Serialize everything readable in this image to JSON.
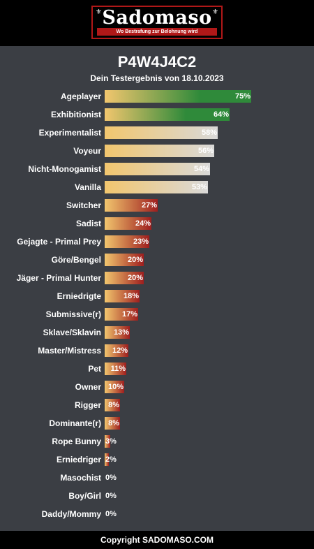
{
  "header": {
    "logo_text": "Sadomaso",
    "logo_tagline": "Wo Bestrafung zur Belohnung wird",
    "logo_corner_glyph": "⚜"
  },
  "colors": {
    "green": "#2f8a3a",
    "light_start": "#f2c66e",
    "light_end": "#d9d9d9",
    "red_end": "#9e1e1e",
    "orange_start": "#f2c66e"
  },
  "chart_data": {
    "type": "bar",
    "orientation": "horizontal",
    "title": "P4W4J4C2",
    "subtitle": "Dein Testergebnis von 18.10.2023",
    "xlim": [
      0,
      100
    ],
    "categories": [
      "Ageplayer",
      "Exhibitionist",
      "Experimentalist",
      "Voyeur",
      "Nicht-Monogamist",
      "Vanilla",
      "Switcher",
      "Sadist",
      "Gejagte - Primal Prey",
      "Göre/Bengel",
      "Jäger - Primal Hunter",
      "Erniedrigte",
      "Submissive(r)",
      "Sklave/Sklavin",
      "Master/Mistress",
      "Pet",
      "Owner",
      "Rigger",
      "Dominante(r)",
      "Rope Bunny",
      "Erniedriger",
      "Masochist",
      "Boy/Girl",
      "Daddy/Mommy"
    ],
    "values": [
      75,
      64,
      58,
      56,
      54,
      53,
      27,
      24,
      23,
      20,
      20,
      18,
      17,
      13,
      12,
      11,
      10,
      8,
      8,
      3,
      2,
      0,
      0,
      0
    ],
    "labels": [
      "75%",
      "64%",
      "58%",
      "56%",
      "54%",
      "53%",
      "27%",
      "24%",
      "23%",
      "20%",
      "20%",
      "18%",
      "17%",
      "13%",
      "12%",
      "11%",
      "10%",
      "8%",
      "8%",
      "3%",
      "2%",
      "0%",
      "0%",
      "0%"
    ],
    "styles": [
      "green",
      "green",
      "light",
      "light",
      "light",
      "light",
      "red",
      "red",
      "red",
      "red",
      "red",
      "red",
      "red",
      "red",
      "red",
      "red",
      "red",
      "red",
      "red",
      "red",
      "red",
      "none",
      "none",
      "none"
    ]
  },
  "footer": {
    "text": "Copyright SADOMASO.COM"
  }
}
